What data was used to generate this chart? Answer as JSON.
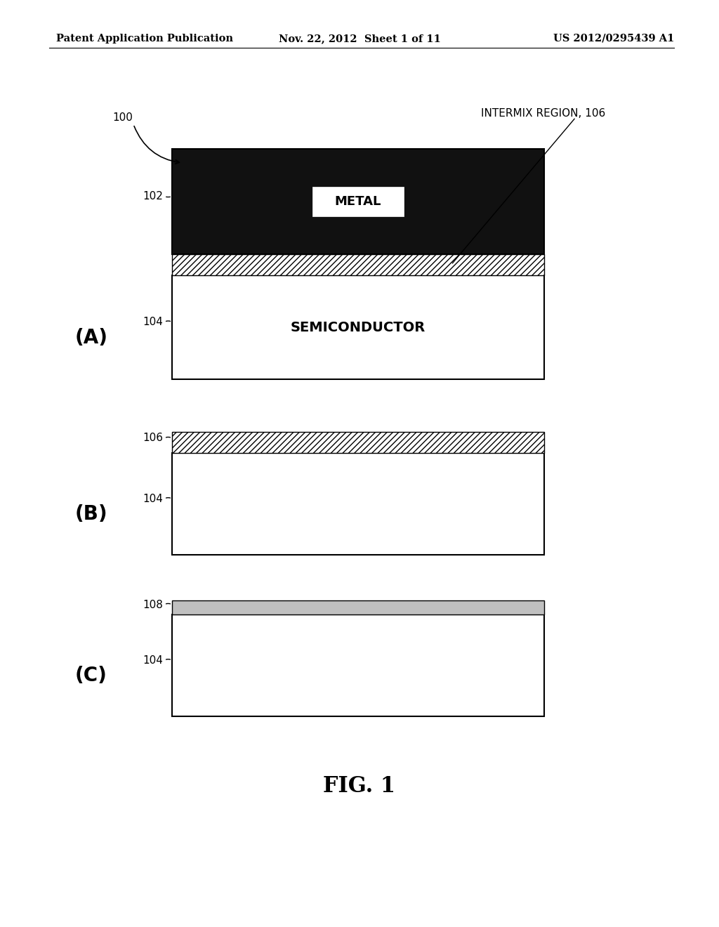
{
  "bg_color": "#ffffff",
  "header_left": "Patent Application Publication",
  "header_mid": "Nov. 22, 2012  Sheet 1 of 11",
  "header_right": "US 2012/0295439 A1",
  "footer": "FIG. 1",
  "text_color": "#000000",
  "line_color": "#000000",
  "metal_fc": "#111111",
  "semi_fc": "#ffffff",
  "hatch_fc": "#ffffff",
  "gray_fc": "#c0c0c0",
  "panel_A": {
    "label": "(A)",
    "ref_100": "100",
    "ref_102": "102",
    "ref_104": "104",
    "metal_text": "METAL",
    "semi_text": "SEMICONDUCTOR",
    "intermix_label": "INTERMIX REGION, 106"
  },
  "panel_B": {
    "label": "(B)",
    "ref_106": "106",
    "ref_104": "104"
  },
  "panel_C": {
    "label": "(C)",
    "ref_108": "108",
    "ref_104": "104"
  }
}
